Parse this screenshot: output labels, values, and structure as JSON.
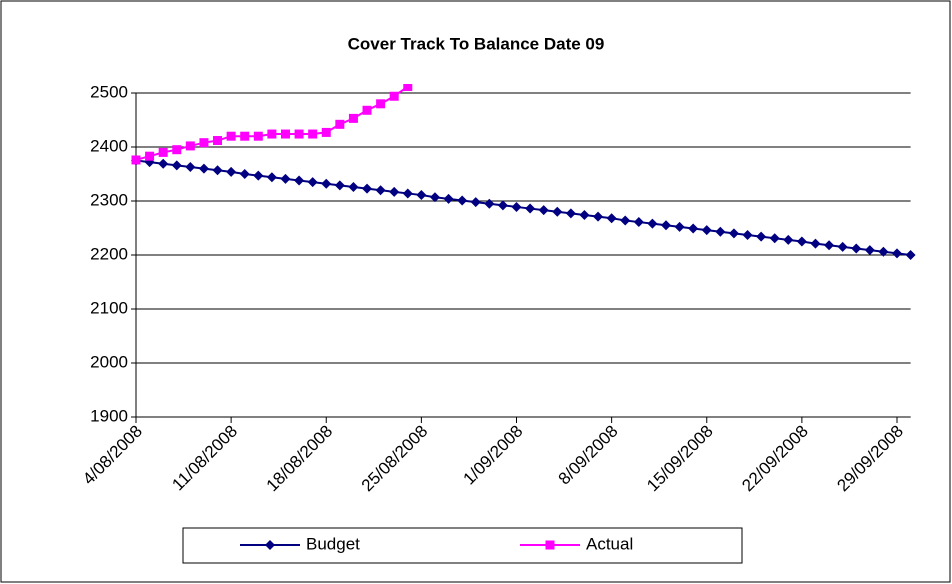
{
  "chart_data": {
    "type": "line",
    "title": "Cover Track To Balance Date 09",
    "categories": [
      "4/08/2008",
      null,
      null,
      null,
      null,
      null,
      null,
      "11/08/2008",
      null,
      null,
      null,
      null,
      null,
      null,
      "18/08/2008",
      null,
      null,
      null,
      null,
      null,
      null,
      "25/08/2008",
      null,
      null,
      null,
      null,
      null,
      null,
      "1/09/2008",
      null,
      null,
      null,
      null,
      null,
      null,
      "8/09/2008",
      null,
      null,
      null,
      null,
      null,
      null,
      "15/09/2008",
      null,
      null,
      null,
      null,
      null,
      null,
      "22/09/2008",
      null,
      null,
      null,
      null,
      null,
      null,
      "29/09/2008",
      null
    ],
    "series": [
      {
        "name": "Budget",
        "color": "#000080",
        "marker": "diamond",
        "values": [
          2375,
          2372,
          2369,
          2366,
          2363,
          2360,
          2357,
          2354,
          2350,
          2347,
          2344,
          2341,
          2338,
          2335,
          2332,
          2329,
          2326,
          2323,
          2320,
          2317,
          2314,
          2311,
          2307,
          2304,
          2301,
          2298,
          2295,
          2292,
          2289,
          2286,
          2283,
          2280,
          2277,
          2274,
          2271,
          2268,
          2264,
          2261,
          2258,
          2255,
          2252,
          2249,
          2246,
          2243,
          2240,
          2237,
          2234,
          2231,
          2228,
          2225,
          2221,
          2218,
          2215,
          2212,
          2209,
          2206,
          2203,
          2200
        ]
      },
      {
        "name": "Actual",
        "color": "#ff00ff",
        "marker": "square",
        "values": [
          2376,
          2383,
          2390,
          2395,
          2402,
          2408,
          2412,
          2420,
          2420,
          2420,
          2424,
          2424,
          2424,
          2424,
          2427,
          2442,
          2453,
          2468,
          2480,
          2494,
          2512,
          null,
          null,
          null,
          null,
          null,
          null,
          null,
          null,
          null,
          null,
          null,
          null,
          null,
          null,
          null,
          null,
          null,
          null,
          null,
          null,
          null,
          null,
          null,
          null,
          null,
          null,
          null,
          null,
          null,
          null,
          null,
          null,
          null,
          null,
          null,
          null,
          null
        ]
      }
    ],
    "ylim": [
      1900,
      2500
    ],
    "yticks": [
      1900,
      2000,
      2100,
      2200,
      2300,
      2400,
      2500
    ],
    "grid": true,
    "legend": "bottom"
  }
}
